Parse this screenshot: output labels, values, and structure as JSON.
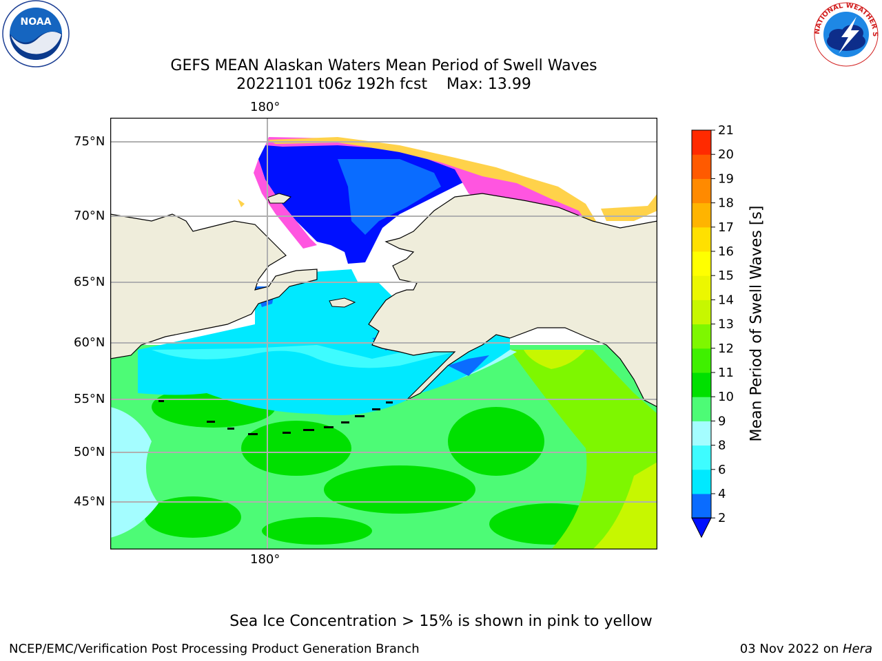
{
  "header": {
    "title_line1": "GEFS MEAN Alaskan Waters Mean Period of Swell Waves",
    "title_line2": "20221101 t06z 192h fcst    Max: 13.99"
  },
  "logos": {
    "left": {
      "name": "noaa-logo",
      "text": "NOAA"
    },
    "right": {
      "name": "nws-logo",
      "text": "NATIONAL WEATHER SERVICE"
    }
  },
  "map": {
    "longitude_label_top": "180°",
    "longitude_label_bottom": "180°",
    "latitude_labels": [
      "75°N",
      "70°N",
      "65°N",
      "60°N",
      "55°N",
      "50°N",
      "45°N"
    ],
    "colors": {
      "land": "#efeddb",
      "ice_pink": "#ff55e0",
      "ice_yellow": "#ffd24a",
      "ocean_deep_blue": "#0010ff",
      "ocean_blue": "#0a6cff",
      "ocean_cyan": "#00e9ff",
      "ocean_light_cyan": "#a4fdff",
      "ocean_green": "#4dfb76",
      "ocean_bright_green": "#00e000",
      "ocean_lime": "#7ef700",
      "ocean_yellow_green": "#c7f700"
    }
  },
  "colorbar": {
    "label": "Mean Period of Swell Waves [s]",
    "ticks": [
      "2",
      "4",
      "6",
      "8",
      "9",
      "10",
      "11",
      "12",
      "13",
      "14",
      "15",
      "16",
      "17",
      "18",
      "19",
      "20",
      "21"
    ],
    "colors": [
      "#0a6cff",
      "#00e9ff",
      "#3efcff",
      "#a4fdff",
      "#4dfb76",
      "#00e000",
      "#3ff000",
      "#7ef700",
      "#c7f700",
      "#ecf700",
      "#ffff00",
      "#ffe000",
      "#ffb400",
      "#ff8a00",
      "#ff5a00",
      "#ff2a00"
    ],
    "extend_color": "#0010ff"
  },
  "note": "Sea Ice Concentration > 15% is shown in pink to yellow",
  "footer": {
    "left": "NCEP/EMC/Verification Post Processing Product Generation Branch",
    "right_date": "03 Nov 2022 on ",
    "right_host": "Hera"
  }
}
